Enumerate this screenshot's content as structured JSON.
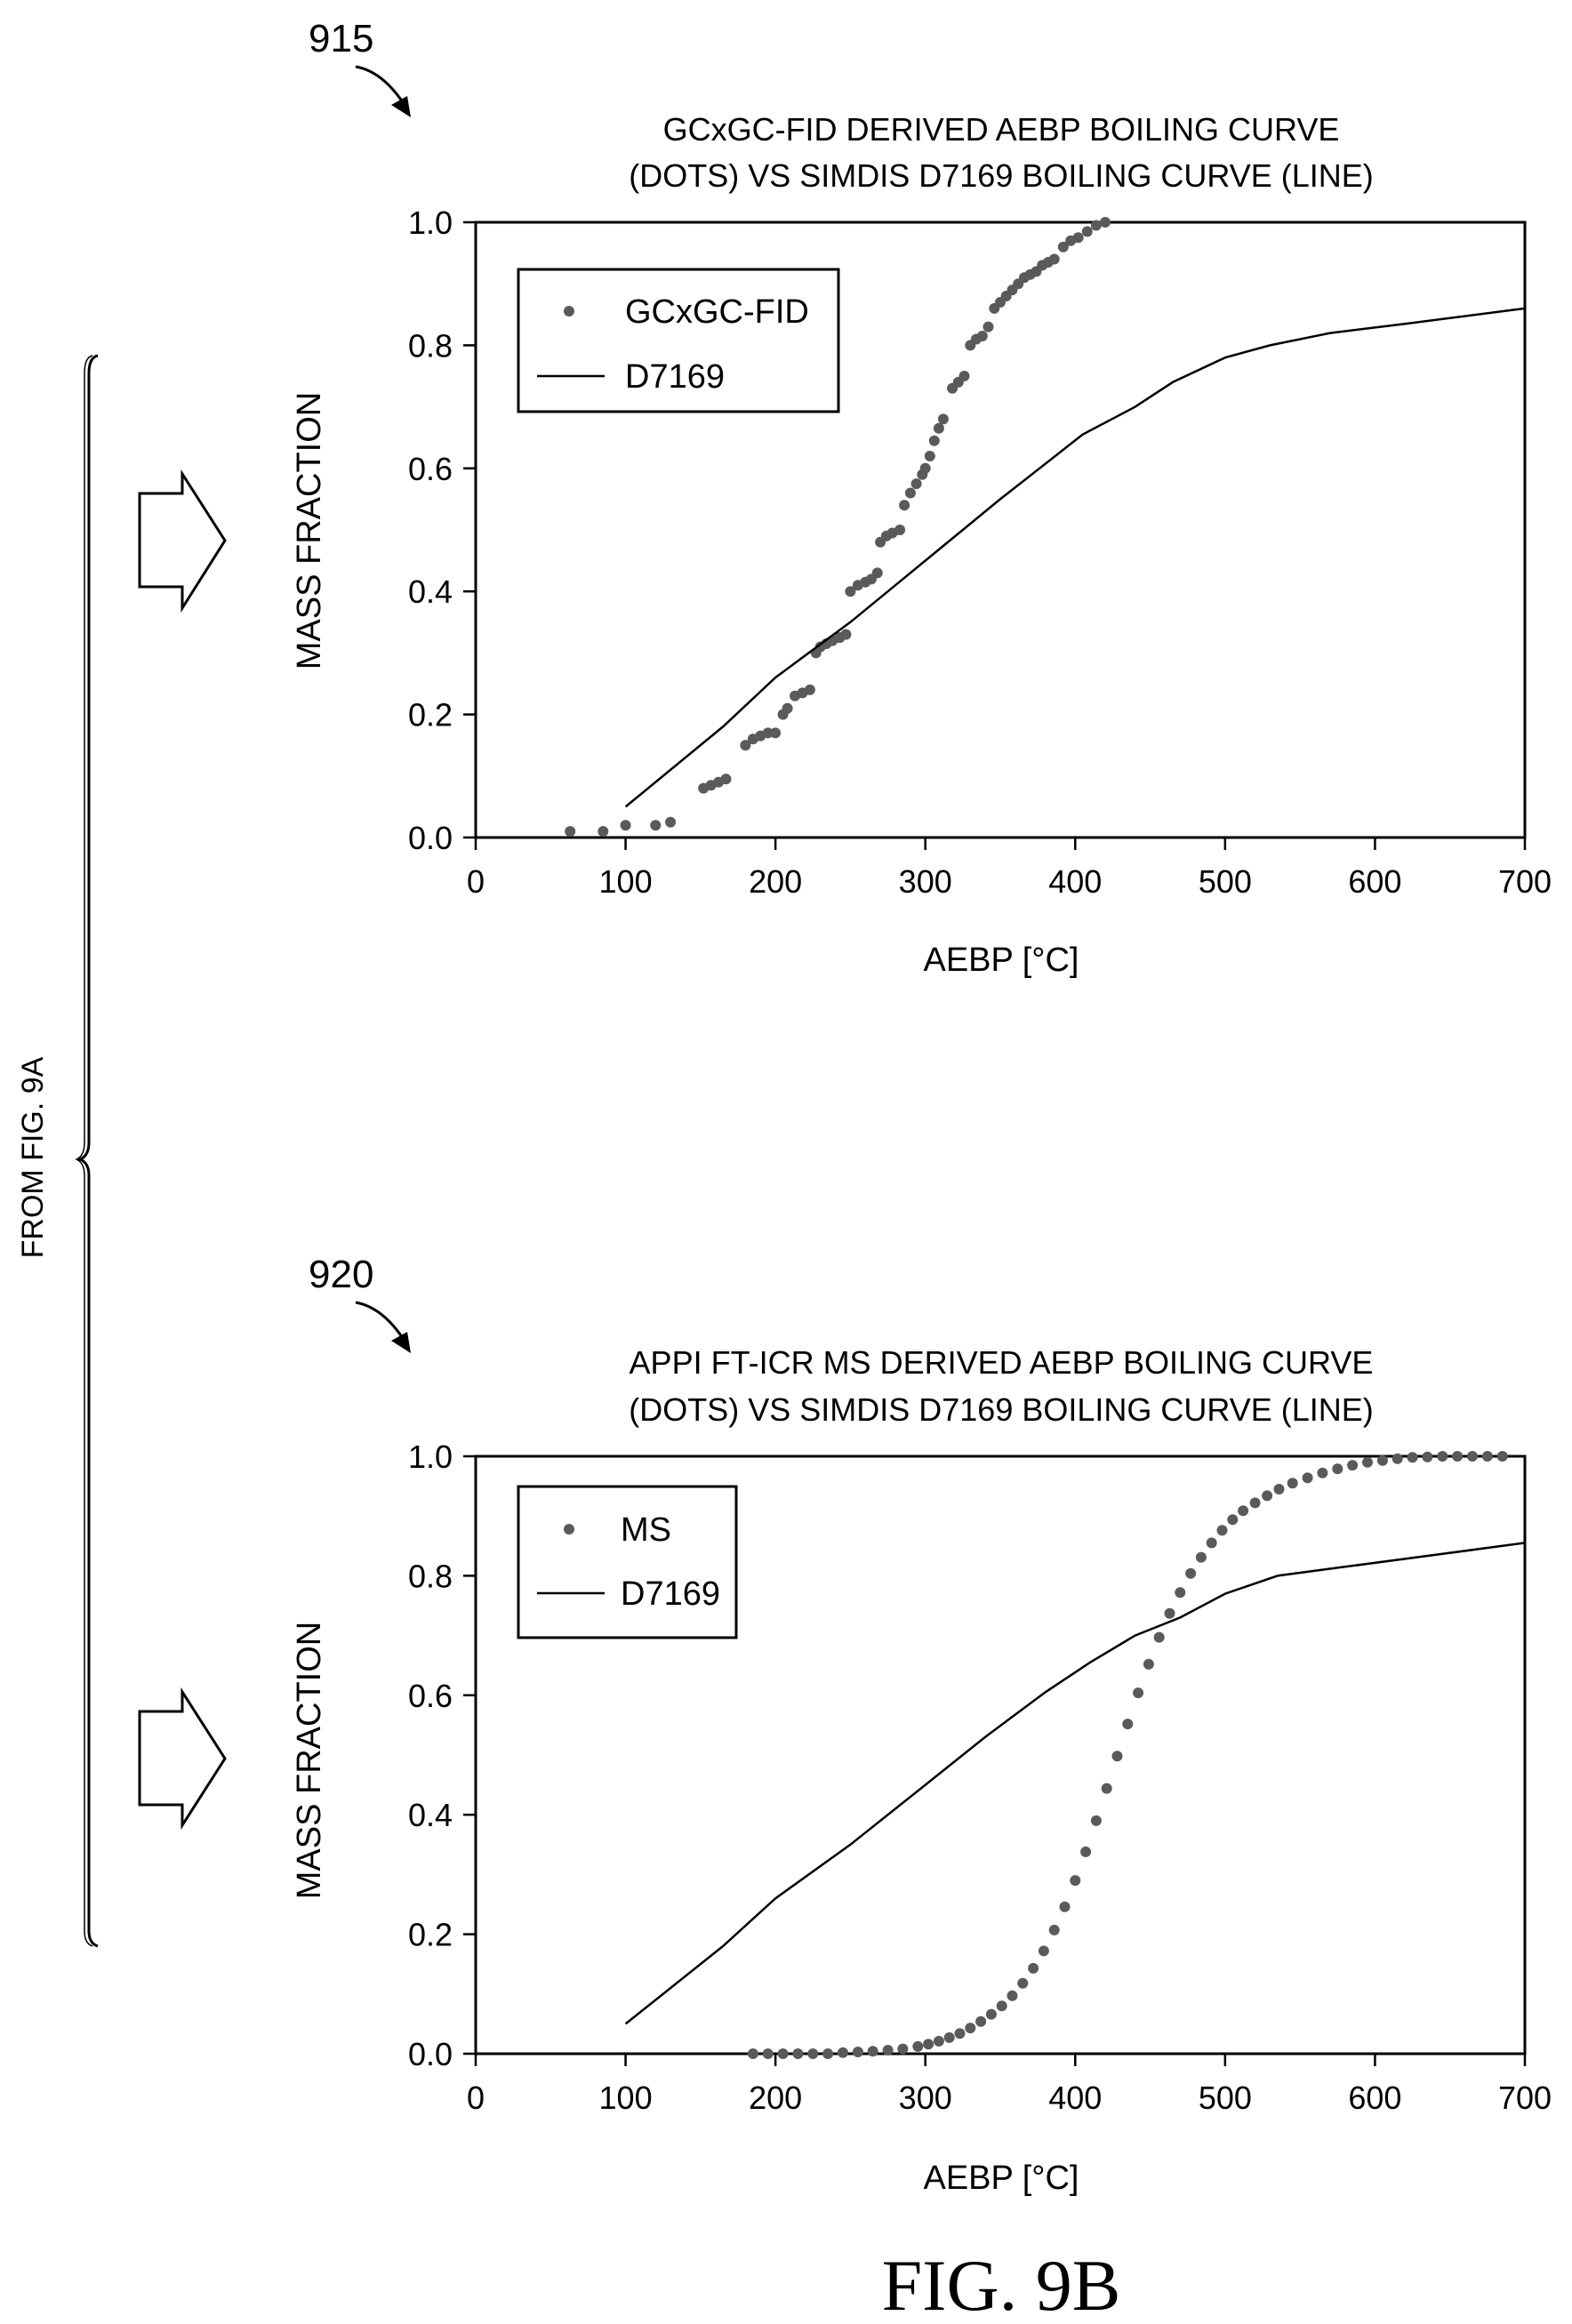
{
  "side_label": "FROM FIG. 9A",
  "figure_caption": "FIG. 9B",
  "chart_data": [
    {
      "type": "scatter",
      "ref_number": "915",
      "title_lines": [
        "GCxGC-FID DERIVED AEBP BOILING CURVE",
        "(DOTS) VS SIMDIS D7169 BOILING CURVE (LINE)"
      ],
      "xlabel": "AEBP [°C]",
      "ylabel": "MASS FRACTION",
      "xlim": [
        0,
        700
      ],
      "ylim": [
        0,
        1.0
      ],
      "xticks": [
        "0",
        "100",
        "200",
        "300",
        "400",
        "500",
        "600",
        "700"
      ],
      "yticks": [
        "0.0",
        "0.2",
        "0.4",
        "0.6",
        "0.8",
        "1.0"
      ],
      "legend_position": "top-left",
      "series": [
        {
          "name": "GCxGC-FID",
          "kind": "dots",
          "color": "#5a5a5a",
          "points": [
            [
              63,
              0.01
            ],
            [
              85,
              0.01
            ],
            [
              100,
              0.02
            ],
            [
              120,
              0.02
            ],
            [
              130,
              0.025
            ],
            [
              152,
              0.08
            ],
            [
              157,
              0.085
            ],
            [
              162,
              0.09
            ],
            [
              167,
              0.095
            ],
            [
              180,
              0.15
            ],
            [
              185,
              0.16
            ],
            [
              190,
              0.165
            ],
            [
              195,
              0.17
            ],
            [
              200,
              0.17
            ],
            [
              205,
              0.2
            ],
            [
              208,
              0.21
            ],
            [
              213,
              0.23
            ],
            [
              218,
              0.235
            ],
            [
              223,
              0.24
            ],
            [
              227,
              0.3
            ],
            [
              230,
              0.31
            ],
            [
              234,
              0.315
            ],
            [
              238,
              0.32
            ],
            [
              243,
              0.325
            ],
            [
              247,
              0.33
            ],
            [
              250,
              0.4
            ],
            [
              255,
              0.41
            ],
            [
              260,
              0.415
            ],
            [
              264,
              0.42
            ],
            [
              268,
              0.43
            ],
            [
              270,
              0.48
            ],
            [
              274,
              0.49
            ],
            [
              278,
              0.495
            ],
            [
              283,
              0.5
            ],
            [
              286,
              0.54
            ],
            [
              290,
              0.56
            ],
            [
              294,
              0.575
            ],
            [
              298,
              0.59
            ],
            [
              300,
              0.6
            ],
            [
              303,
              0.62
            ],
            [
              306,
              0.645
            ],
            [
              309,
              0.665
            ],
            [
              312,
              0.68
            ],
            [
              318,
              0.73
            ],
            [
              322,
              0.74
            ],
            [
              326,
              0.75
            ],
            [
              330,
              0.8
            ],
            [
              334,
              0.81
            ],
            [
              338,
              0.815
            ],
            [
              342,
              0.83
            ],
            [
              346,
              0.86
            ],
            [
              350,
              0.87
            ],
            [
              354,
              0.88
            ],
            [
              358,
              0.89
            ],
            [
              362,
              0.9
            ],
            [
              366,
              0.91
            ],
            [
              370,
              0.915
            ],
            [
              374,
              0.92
            ],
            [
              378,
              0.93
            ],
            [
              382,
              0.935
            ],
            [
              386,
              0.94
            ],
            [
              392,
              0.96
            ],
            [
              397,
              0.97
            ],
            [
              402,
              0.975
            ],
            [
              408,
              0.985
            ],
            [
              414,
              0.995
            ],
            [
              420,
              1.0
            ]
          ]
        },
        {
          "name": "D7169",
          "kind": "line",
          "color": "#000000",
          "points": [
            [
              100,
              0.05
            ],
            [
              130,
              0.11
            ],
            [
              165,
              0.18
            ],
            [
              200,
              0.26
            ],
            [
              250,
              0.35
            ],
            [
              300,
              0.45
            ],
            [
              350,
              0.55
            ],
            [
              405,
              0.655
            ],
            [
              440,
              0.7
            ],
            [
              465,
              0.74
            ],
            [
              500,
              0.78
            ],
            [
              530,
              0.8
            ],
            [
              570,
              0.82
            ],
            [
              620,
              0.835
            ],
            [
              700,
              0.86
            ]
          ]
        }
      ]
    },
    {
      "type": "scatter",
      "ref_number": "920",
      "title_lines": [
        "APPI FT-ICR MS DERIVED AEBP BOILING CURVE",
        "(DOTS) VS SIMDIS D7169 BOILING CURVE (LINE)"
      ],
      "xlabel": "AEBP [°C]",
      "ylabel": "MASS FRACTION",
      "xlim": [
        0,
        700
      ],
      "ylim": [
        0,
        1.0
      ],
      "xticks": [
        "0",
        "100",
        "200",
        "300",
        "400",
        "500",
        "600",
        "700"
      ],
      "yticks": [
        "0.0",
        "0.2",
        "0.4",
        "0.6",
        "0.8",
        "1.0"
      ],
      "legend_position": "top-left",
      "series": [
        {
          "name": "MS",
          "kind": "dots",
          "color": "#5a5a5a",
          "points": [
            [
              185,
              0.0
            ],
            [
              195,
              0.0
            ],
            [
              205,
              0.0
            ],
            [
              215,
              0.0
            ],
            [
              225,
              0.0
            ],
            [
              235,
              0.0
            ],
            [
              245,
              0.002
            ],
            [
              255,
              0.003
            ],
            [
              265,
              0.004
            ],
            [
              275,
              0.006
            ],
            [
              285,
              0.008
            ],
            [
              295,
              0.012
            ],
            [
              302,
              0.016
            ],
            [
              309,
              0.021
            ],
            [
              316,
              0.027
            ],
            [
              323,
              0.034
            ],
            [
              330,
              0.043
            ],
            [
              337,
              0.054
            ],
            [
              344,
              0.066
            ],
            [
              351,
              0.08
            ],
            [
              358,
              0.097
            ],
            [
              365,
              0.118
            ],
            [
              372,
              0.143
            ],
            [
              379,
              0.172
            ],
            [
              386,
              0.207
            ],
            [
              393,
              0.246
            ],
            [
              400,
              0.29
            ],
            [
              407,
              0.338
            ],
            [
              414,
              0.39
            ],
            [
              421,
              0.444
            ],
            [
              428,
              0.498
            ],
            [
              435,
              0.552
            ],
            [
              442,
              0.604
            ],
            [
              449,
              0.652
            ],
            [
              456,
              0.697
            ],
            [
              463,
              0.737
            ],
            [
              470,
              0.772
            ],
            [
              477,
              0.804
            ],
            [
              484,
              0.831
            ],
            [
              491,
              0.855
            ],
            [
              498,
              0.876
            ],
            [
              505,
              0.894
            ],
            [
              512,
              0.909
            ],
            [
              520,
              0.922
            ],
            [
              528,
              0.934
            ],
            [
              536,
              0.945
            ],
            [
              545,
              0.955
            ],
            [
              555,
              0.964
            ],
            [
              565,
              0.972
            ],
            [
              575,
              0.979
            ],
            [
              585,
              0.985
            ],
            [
              595,
              0.99
            ],
            [
              605,
              0.993
            ],
            [
              615,
              0.996
            ],
            [
              625,
              0.998
            ],
            [
              635,
              0.999
            ],
            [
              645,
              1.0
            ],
            [
              655,
              1.0
            ],
            [
              665,
              1.0
            ],
            [
              675,
              1.0
            ],
            [
              685,
              1.0
            ]
          ]
        },
        {
          "name": "D7169",
          "kind": "line",
          "color": "#000000",
          "points": [
            [
              100,
              0.05
            ],
            [
              130,
              0.11
            ],
            [
              165,
              0.18
            ],
            [
              200,
              0.26
            ],
            [
              250,
              0.35
            ],
            [
              300,
              0.45
            ],
            [
              340,
              0.53
            ],
            [
              380,
              0.605
            ],
            [
              410,
              0.655
            ],
            [
              440,
              0.7
            ],
            [
              470,
              0.73
            ],
            [
              500,
              0.77
            ],
            [
              535,
              0.8
            ],
            [
              580,
              0.815
            ],
            [
              640,
              0.835
            ],
            [
              700,
              0.855
            ]
          ]
        }
      ]
    }
  ]
}
